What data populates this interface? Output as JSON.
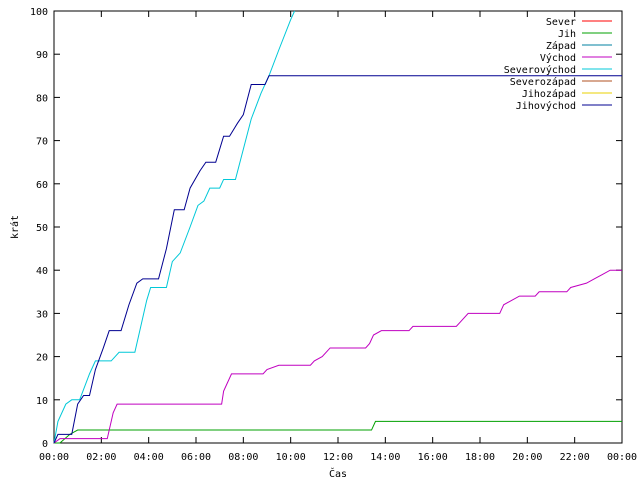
{
  "chart_data": {
    "type": "line",
    "title": "",
    "xlabel": "Čas",
    "ylabel": "krát",
    "xlim": [
      "00:00",
      "24:00"
    ],
    "ylim": [
      0,
      100
    ],
    "grid": false,
    "legend_position": "top-right",
    "x_ticks": [
      "00:00",
      "02:00",
      "04:00",
      "06:00",
      "08:00",
      "10:00",
      "12:00",
      "14:00",
      "16:00",
      "18:00",
      "20:00",
      "22:00",
      "00:00"
    ],
    "y_ticks": [
      "0",
      "10",
      "20",
      "30",
      "40",
      "50",
      "60",
      "70",
      "80",
      "90",
      "100"
    ],
    "series": [
      {
        "name": "Sever",
        "color": "#ff0000",
        "points": []
      },
      {
        "name": "Jih",
        "color": "#00a000",
        "points": [
          [
            "00:00",
            0
          ],
          [
            "00:15",
            0
          ],
          [
            "00:40",
            2
          ],
          [
            "01:00",
            3
          ],
          [
            "13:25",
            3
          ],
          [
            "13:35",
            5
          ],
          [
            "24:00",
            5
          ]
        ]
      },
      {
        "name": "Západ",
        "color": "#0080a0",
        "points": []
      },
      {
        "name": "Východ",
        "color": "#c000c0",
        "points": [
          [
            "00:00",
            0
          ],
          [
            "00:15",
            1
          ],
          [
            "02:15",
            1
          ],
          [
            "02:30",
            7
          ],
          [
            "02:40",
            9
          ],
          [
            "07:05",
            9
          ],
          [
            "07:10",
            12
          ],
          [
            "07:20",
            14
          ],
          [
            "07:30",
            16
          ],
          [
            "08:50",
            16
          ],
          [
            "09:00",
            17
          ],
          [
            "09:30",
            18
          ],
          [
            "10:50",
            18
          ],
          [
            "11:00",
            19
          ],
          [
            "11:20",
            20
          ],
          [
            "11:40",
            22
          ],
          [
            "13:10",
            22
          ],
          [
            "13:20",
            23
          ],
          [
            "13:30",
            25
          ],
          [
            "13:50",
            26
          ],
          [
            "15:00",
            26
          ],
          [
            "15:10",
            27
          ],
          [
            "17:00",
            27
          ],
          [
            "17:10",
            28
          ],
          [
            "17:30",
            30
          ],
          [
            "18:50",
            30
          ],
          [
            "19:00",
            32
          ],
          [
            "19:20",
            33
          ],
          [
            "19:40",
            34
          ],
          [
            "20:20",
            34
          ],
          [
            "20:30",
            35
          ],
          [
            "21:40",
            35
          ],
          [
            "21:50",
            36
          ],
          [
            "22:30",
            37
          ],
          [
            "22:50",
            38
          ],
          [
            "23:10",
            39
          ],
          [
            "23:30",
            40
          ],
          [
            "24:00",
            40
          ]
        ]
      },
      {
        "name": "Severovýchod",
        "color": "#00c8d8",
        "points": [
          [
            "00:00",
            0
          ],
          [
            "00:10",
            5
          ],
          [
            "00:30",
            9
          ],
          [
            "00:45",
            10
          ],
          [
            "01:05",
            10
          ],
          [
            "01:30",
            16
          ],
          [
            "01:45",
            19
          ],
          [
            "02:25",
            19
          ],
          [
            "02:45",
            21
          ],
          [
            "03:25",
            21
          ],
          [
            "03:40",
            27
          ],
          [
            "03:55",
            33
          ],
          [
            "04:05",
            36
          ],
          [
            "04:45",
            36
          ],
          [
            "05:00",
            42
          ],
          [
            "05:20",
            44
          ],
          [
            "05:45",
            50
          ],
          [
            "06:05",
            55
          ],
          [
            "06:20",
            56
          ],
          [
            "06:35",
            59
          ],
          [
            "07:00",
            59
          ],
          [
            "07:10",
            61
          ],
          [
            "07:40",
            61
          ],
          [
            "08:00",
            68
          ],
          [
            "08:20",
            75
          ],
          [
            "08:45",
            81
          ],
          [
            "09:05",
            85
          ],
          [
            "09:30",
            91
          ],
          [
            "10:00",
            98
          ],
          [
            "10:10",
            100
          ]
        ]
      },
      {
        "name": "Severozápad",
        "color": "#b05020",
        "points": []
      },
      {
        "name": "Jihozápad",
        "color": "#e8d000",
        "points": []
      },
      {
        "name": "Jihovýchod",
        "color": "#000090",
        "points": [
          [
            "00:00",
            0
          ],
          [
            "00:10",
            2
          ],
          [
            "00:45",
            2
          ],
          [
            "01:00",
            9
          ],
          [
            "01:15",
            11
          ],
          [
            "01:30",
            11
          ],
          [
            "01:45",
            17
          ],
          [
            "02:05",
            22
          ],
          [
            "02:20",
            26
          ],
          [
            "02:50",
            26
          ],
          [
            "03:10",
            32
          ],
          [
            "03:30",
            37
          ],
          [
            "03:45",
            38
          ],
          [
            "04:25",
            38
          ],
          [
            "04:45",
            45
          ],
          [
            "05:05",
            54
          ],
          [
            "05:30",
            54
          ],
          [
            "05:45",
            59
          ],
          [
            "06:10",
            63
          ],
          [
            "06:25",
            65
          ],
          [
            "06:50",
            65
          ],
          [
            "07:10",
            71
          ],
          [
            "07:25",
            71
          ],
          [
            "07:45",
            74
          ],
          [
            "08:00",
            76
          ],
          [
            "08:20",
            83
          ],
          [
            "08:55",
            83
          ],
          [
            "09:05",
            85
          ],
          [
            "24:00",
            85
          ]
        ]
      }
    ]
  }
}
